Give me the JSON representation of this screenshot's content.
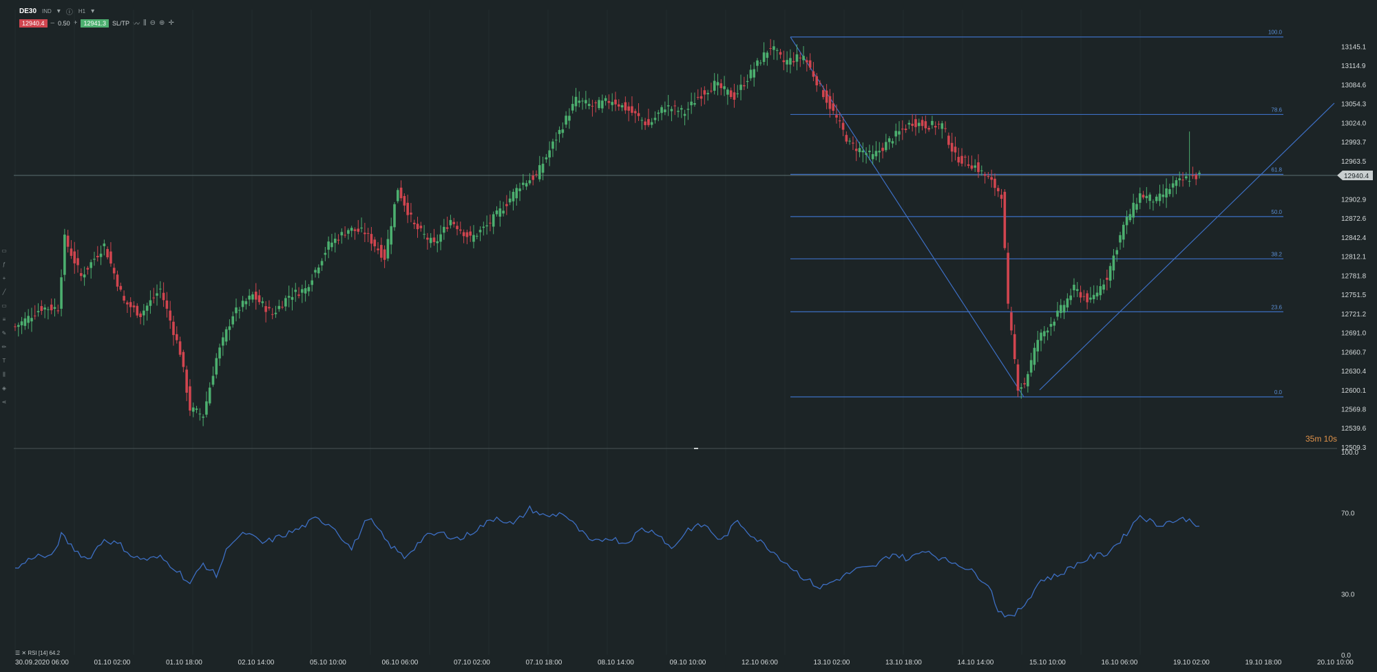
{
  "toolbar": {
    "symbol": "DE30",
    "symbol_suffix": "IND",
    "timeframe": "H1",
    "sell_price": "12940.4",
    "spread": "0.50",
    "buy_price": "12941.3",
    "sltp_label": "SL/TP"
  },
  "countdown": "35m 10s",
  "rsi_label": "RSI [14] 64.2",
  "colors": {
    "background": "#1c2426",
    "bull": "#4caf6f",
    "bear": "#d1454f",
    "fib": "#3d6fc4",
    "rsi_line": "#3d6fc4"
  },
  "chart_data": [
    {
      "type": "candlestick",
      "title": "DE30",
      "ylim": [
        12509.3,
        13175
      ],
      "y_ticks": [
        "13145.1",
        "13114.9",
        "13084.6",
        "13054.3",
        "13024.0",
        "12993.7",
        "12963.5",
        "12902.9",
        "12872.6",
        "12842.4",
        "12812.1",
        "12781.8",
        "12751.5",
        "12721.2",
        "12691.0",
        "12660.7",
        "12630.4",
        "12600.1",
        "12569.8",
        "12539.6",
        "12509.3"
      ],
      "x_ticks": [
        "30.09.2020 06:00",
        "01.10 02:00",
        "01.10 18:00",
        "02.10 14:00",
        "05.10 10:00",
        "06.10 06:00",
        "07.10 02:00",
        "07.10 18:00",
        "08.10 14:00",
        "09.10 10:00",
        "12.10 06:00",
        "13.10 02:00",
        "13.10 18:00",
        "14.10 14:00",
        "15.10 10:00",
        "16.10 06:00",
        "19.10 02:00",
        "19.10 18:00",
        "20.10 10:00"
      ],
      "current_price": "12940.4",
      "current_price_value": 12940.4,
      "fibonacci": {
        "levels": [
          {
            "label": "100.0",
            "value": 13160
          },
          {
            "label": "78.6",
            "value": 13037
          },
          {
            "label": "61.8",
            "value": 12942
          },
          {
            "label": "50.0",
            "value": 12875
          },
          {
            "label": "38.2",
            "value": 12808
          },
          {
            "label": "23.6",
            "value": 12724
          },
          {
            "label": "0.0",
            "value": 12589
          }
        ]
      },
      "anchors": [
        {
          "i": 0,
          "v": 12700
        },
        {
          "i": 8,
          "v": 12730
        },
        {
          "i": 13,
          "v": 12730
        },
        {
          "i": 15,
          "v": 12840
        },
        {
          "i": 20,
          "v": 12780
        },
        {
          "i": 27,
          "v": 12830
        },
        {
          "i": 33,
          "v": 12740
        },
        {
          "i": 38,
          "v": 12720
        },
        {
          "i": 44,
          "v": 12760
        },
        {
          "i": 50,
          "v": 12660
        },
        {
          "i": 53,
          "v": 12570
        },
        {
          "i": 57,
          "v": 12560
        },
        {
          "i": 61,
          "v": 12650
        },
        {
          "i": 66,
          "v": 12720
        },
        {
          "i": 72,
          "v": 12750
        },
        {
          "i": 78,
          "v": 12720
        },
        {
          "i": 83,
          "v": 12750
        },
        {
          "i": 88,
          "v": 12760
        },
        {
          "i": 95,
          "v": 12830
        },
        {
          "i": 101,
          "v": 12855
        },
        {
          "i": 106,
          "v": 12850
        },
        {
          "i": 112,
          "v": 12810
        },
        {
          "i": 116,
          "v": 12920
        },
        {
          "i": 121,
          "v": 12860
        },
        {
          "i": 127,
          "v": 12830
        },
        {
          "i": 132,
          "v": 12870
        },
        {
          "i": 138,
          "v": 12840
        },
        {
          "i": 143,
          "v": 12860
        },
        {
          "i": 148,
          "v": 12890
        },
        {
          "i": 153,
          "v": 12925
        },
        {
          "i": 158,
          "v": 12940
        },
        {
          "i": 164,
          "v": 13000
        },
        {
          "i": 170,
          "v": 13060
        },
        {
          "i": 175,
          "v": 13050
        },
        {
          "i": 181,
          "v": 13060
        },
        {
          "i": 187,
          "v": 13040
        },
        {
          "i": 192,
          "v": 13020
        },
        {
          "i": 197,
          "v": 13050
        },
        {
          "i": 203,
          "v": 13040
        },
        {
          "i": 207,
          "v": 13065
        },
        {
          "i": 212,
          "v": 13085
        },
        {
          "i": 218,
          "v": 13065
        },
        {
          "i": 224,
          "v": 13110
        },
        {
          "i": 229,
          "v": 13145
        },
        {
          "i": 233,
          "v": 13120
        },
        {
          "i": 239,
          "v": 13130
        },
        {
          "i": 246,
          "v": 13060
        },
        {
          "i": 253,
          "v": 12990
        },
        {
          "i": 260,
          "v": 12970
        },
        {
          "i": 266,
          "v": 13000
        },
        {
          "i": 272,
          "v": 13025
        },
        {
          "i": 276,
          "v": 13020
        },
        {
          "i": 281,
          "v": 13020
        },
        {
          "i": 285,
          "v": 12970
        },
        {
          "i": 291,
          "v": 12955
        },
        {
          "i": 295,
          "v": 12935
        },
        {
          "i": 299,
          "v": 12910
        },
        {
          "i": 301,
          "v": 12730
        },
        {
          "i": 304,
          "v": 12605
        },
        {
          "i": 306,
          "v": 12610
        },
        {
          "i": 310,
          "v": 12680
        },
        {
          "i": 316,
          "v": 12720
        },
        {
          "i": 321,
          "v": 12760
        },
        {
          "i": 326,
          "v": 12740
        },
        {
          "i": 331,
          "v": 12780
        },
        {
          "i": 336,
          "v": 12860
        },
        {
          "i": 341,
          "v": 12910
        },
        {
          "i": 346,
          "v": 12900
        },
        {
          "i": 351,
          "v": 12925
        },
        {
          "i": 355,
          "v": 12935
        },
        {
          "i": 359,
          "v": 12940
        }
      ],
      "candle_count": 360,
      "wick_extreme": {
        "index": 356,
        "high": 13010
      }
    },
    {
      "type": "line",
      "title": "RSI [14] 64.2",
      "ylim": [
        0,
        100
      ],
      "y_ticks": [
        "100.0",
        "70.0",
        "30.0",
        "0.0"
      ],
      "anchors": [
        {
          "i": 0,
          "v": 42
        },
        {
          "i": 6,
          "v": 49
        },
        {
          "i": 11,
          "v": 48
        },
        {
          "i": 14,
          "v": 59
        },
        {
          "i": 18,
          "v": 52
        },
        {
          "i": 22,
          "v": 47
        },
        {
          "i": 27,
          "v": 57
        },
        {
          "i": 32,
          "v": 54
        },
        {
          "i": 36,
          "v": 48
        },
        {
          "i": 40,
          "v": 47
        },
        {
          "i": 44,
          "v": 48
        },
        {
          "i": 49,
          "v": 42
        },
        {
          "i": 53,
          "v": 35
        },
        {
          "i": 57,
          "v": 45
        },
        {
          "i": 61,
          "v": 39
        },
        {
          "i": 65,
          "v": 55
        },
        {
          "i": 70,
          "v": 60
        },
        {
          "i": 75,
          "v": 55
        },
        {
          "i": 80,
          "v": 58
        },
        {
          "i": 86,
          "v": 62
        },
        {
          "i": 91,
          "v": 67
        },
        {
          "i": 96,
          "v": 64
        },
        {
          "i": 102,
          "v": 52
        },
        {
          "i": 107,
          "v": 68
        },
        {
          "i": 113,
          "v": 55
        },
        {
          "i": 118,
          "v": 48
        },
        {
          "i": 124,
          "v": 58
        },
        {
          "i": 129,
          "v": 60
        },
        {
          "i": 135,
          "v": 57
        },
        {
          "i": 140,
          "v": 62
        },
        {
          "i": 146,
          "v": 68
        },
        {
          "i": 151,
          "v": 64
        },
        {
          "i": 156,
          "v": 72
        },
        {
          "i": 161,
          "v": 68
        },
        {
          "i": 166,
          "v": 70
        },
        {
          "i": 170,
          "v": 63
        },
        {
          "i": 175,
          "v": 55
        },
        {
          "i": 180,
          "v": 58
        },
        {
          "i": 185,
          "v": 55
        },
        {
          "i": 190,
          "v": 62
        },
        {
          "i": 195,
          "v": 60
        },
        {
          "i": 199,
          "v": 52
        },
        {
          "i": 204,
          "v": 62
        },
        {
          "i": 209,
          "v": 64
        },
        {
          "i": 214,
          "v": 56
        },
        {
          "i": 219,
          "v": 66
        },
        {
          "i": 224,
          "v": 58
        },
        {
          "i": 229,
          "v": 52
        },
        {
          "i": 234,
          "v": 45
        },
        {
          "i": 239,
          "v": 38
        },
        {
          "i": 244,
          "v": 33
        },
        {
          "i": 249,
          "v": 37
        },
        {
          "i": 255,
          "v": 42
        },
        {
          "i": 260,
          "v": 43
        },
        {
          "i": 266,
          "v": 50
        },
        {
          "i": 271,
          "v": 47
        },
        {
          "i": 276,
          "v": 52
        },
        {
          "i": 281,
          "v": 47
        },
        {
          "i": 286,
          "v": 45
        },
        {
          "i": 291,
          "v": 40
        },
        {
          "i": 295,
          "v": 35
        },
        {
          "i": 298,
          "v": 22
        },
        {
          "i": 302,
          "v": 18
        },
        {
          "i": 306,
          "v": 25
        },
        {
          "i": 311,
          "v": 37
        },
        {
          "i": 316,
          "v": 39
        },
        {
          "i": 321,
          "v": 44
        },
        {
          "i": 326,
          "v": 48
        },
        {
          "i": 331,
          "v": 50
        },
        {
          "i": 336,
          "v": 58
        },
        {
          "i": 341,
          "v": 69
        },
        {
          "i": 346,
          "v": 64
        },
        {
          "i": 351,
          "v": 66
        },
        {
          "i": 355,
          "v": 67
        },
        {
          "i": 359,
          "v": 64
        }
      ]
    }
  ]
}
